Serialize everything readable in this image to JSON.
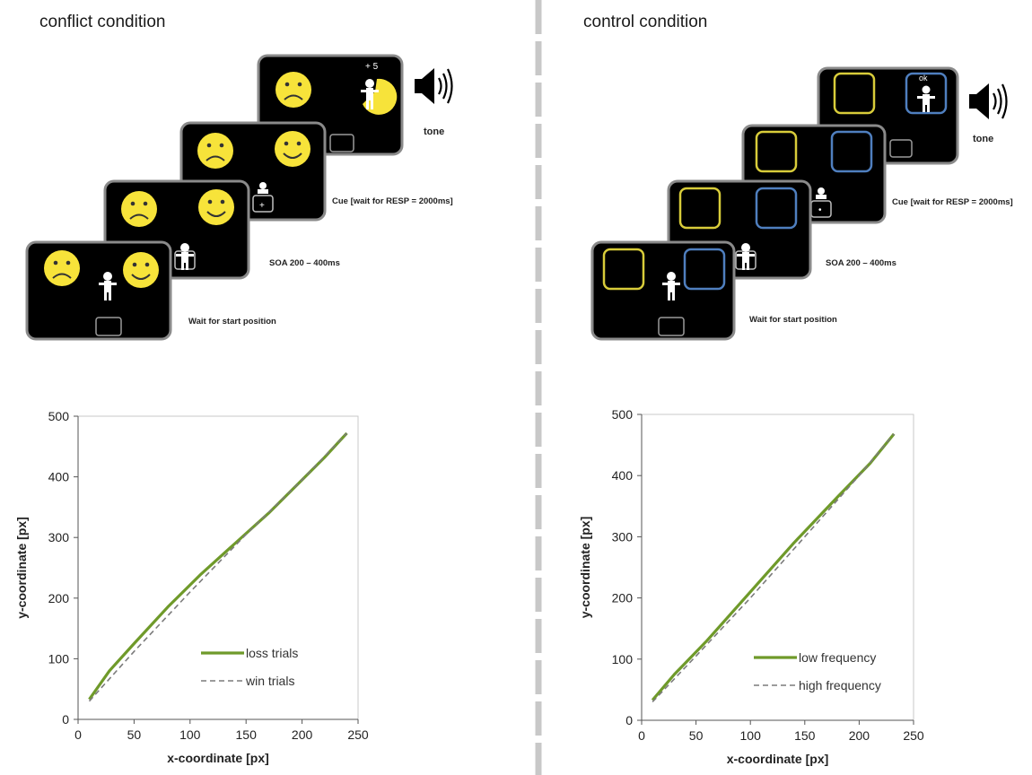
{
  "panels": {
    "conflict": {
      "heading": "conflict condition",
      "screen_labels": {
        "tone": "tone",
        "cue": "Cue [wait for RESP = 2000ms]",
        "soa": "SOA 200 – 400ms",
        "wait": "Wait for start position"
      },
      "feedback_text": "+ 5",
      "cue_marker": "+"
    },
    "control": {
      "heading": "control condition",
      "screen_labels": {
        "tone": "tone",
        "cue": "Cue [wait for RESP = 2000ms]",
        "soa": "SOA 200 – 400ms",
        "wait": "Wait for start position"
      },
      "feedback_text": "ok",
      "cue_marker": "•"
    }
  },
  "colors": {
    "screen_bg": "#000000",
    "smiley_yellow": "#f7e33a",
    "box_yellow": "#d8cc3a",
    "box_blue": "#4f7fbf",
    "solid_line": "#6f9a2a",
    "dashed_line": "#7b7b7b"
  },
  "chart_data": [
    {
      "type": "line",
      "xlabel": "x-coordinate  [px]",
      "ylabel": "y-coordinate  [px]",
      "xlim": [
        0,
        250
      ],
      "ylim": [
        0,
        500
      ],
      "xticks": [
        "0",
        "50",
        "100",
        "150",
        "200",
        "250"
      ],
      "yticks": [
        "0",
        "100",
        "200",
        "300",
        "400",
        "500"
      ],
      "grid": false,
      "legend": "bottom-right",
      "series": [
        {
          "name": "loss trials",
          "style": "solid",
          "color": "#6f9a2a",
          "x": [
            10,
            28,
            50,
            80,
            110,
            140,
            170,
            200,
            220,
            240
          ],
          "y": [
            33,
            80,
            125,
            185,
            240,
            290,
            340,
            395,
            432,
            472
          ]
        },
        {
          "name": "win trials",
          "style": "dashed",
          "color": "#7b7b7b",
          "x": [
            10,
            50,
            100,
            150,
            200,
            240
          ],
          "y": [
            30,
            112,
            210,
            305,
            395,
            472
          ]
        }
      ]
    },
    {
      "type": "line",
      "xlabel": "x-coordinate  [px]",
      "ylabel": "y-coordinate  [px]",
      "xlim": [
        0,
        250
      ],
      "ylim": [
        0,
        500
      ],
      "xticks": [
        "0",
        "50",
        "100",
        "150",
        "200",
        "250"
      ],
      "yticks": [
        "0",
        "100",
        "200",
        "300",
        "400",
        "500"
      ],
      "grid": false,
      "legend": "bottom-right",
      "series": [
        {
          "name": "low frequency",
          "style": "solid",
          "color": "#6f9a2a",
          "x": [
            10,
            30,
            60,
            100,
            140,
            180,
            210,
            232
          ],
          "y": [
            33,
            75,
            130,
            210,
            290,
            365,
            420,
            468
          ]
        },
        {
          "name": "high frequency",
          "style": "dashed",
          "color": "#7b7b7b",
          "x": [
            10,
            50,
            100,
            150,
            200,
            232
          ],
          "y": [
            30,
            105,
            200,
            300,
            400,
            468
          ]
        }
      ]
    }
  ]
}
